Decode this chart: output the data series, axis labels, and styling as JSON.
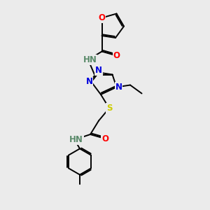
{
  "bg_color": "#ebebeb",
  "atom_colors": {
    "C": "#000000",
    "N": "#0000dd",
    "O": "#ff0000",
    "S": "#cccc00",
    "H": "#5a8a6a"
  },
  "bond_color": "#000000",
  "bond_width": 1.4,
  "font_size": 8.5
}
